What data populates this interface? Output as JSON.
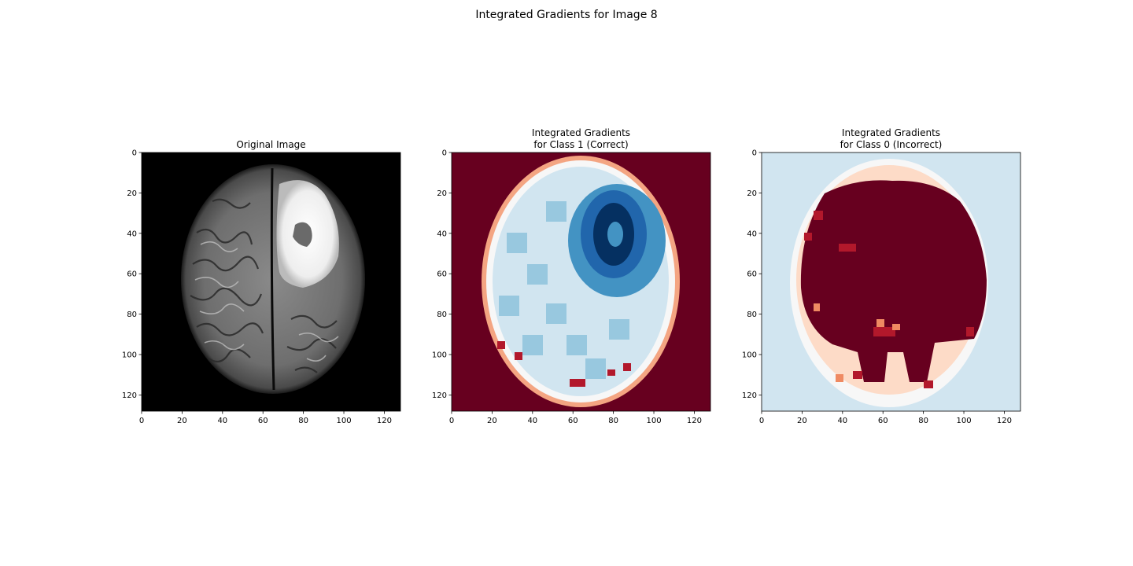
{
  "figure": {
    "title": "Integrated Gradients for Image 8"
  },
  "chart_data": [
    {
      "type": "heatmap",
      "title": "Original Image",
      "colormap": "gray",
      "content": "grayscale brain MRI slice",
      "xlim": [
        0,
        128
      ],
      "ylim": [
        128,
        0
      ],
      "xticks": [
        0,
        20,
        40,
        60,
        80,
        100,
        120
      ],
      "yticks": [
        0,
        20,
        40,
        60,
        80,
        100,
        120
      ],
      "grid": false
    },
    {
      "type": "heatmap",
      "title": "Integrated Gradients\n for Class 1 (Correct)",
      "colormap": "RdBu",
      "content": "attribution map, blue inside brain (strongest near tumor), dark red background",
      "xlim": [
        0,
        128
      ],
      "ylim": [
        128,
        0
      ],
      "xticks": [
        0,
        20,
        40,
        60,
        80,
        100,
        120
      ],
      "yticks": [
        0,
        20,
        40,
        60,
        80,
        100,
        120
      ],
      "grid": false
    },
    {
      "type": "heatmap",
      "title": "Integrated Gradients\n for Class 0 (Incorrect)",
      "colormap": "RdBu",
      "content": "attribution map, dark red inside brain, light blue background",
      "xlim": [
        0,
        128
      ],
      "ylim": [
        128,
        0
      ],
      "xticks": [
        0,
        20,
        40,
        60,
        80,
        100,
        120
      ],
      "yticks": [
        0,
        20,
        40,
        60,
        80,
        100,
        120
      ],
      "grid": false
    }
  ],
  "colors": {
    "dark_red": "#67001f",
    "red": "#b2182b",
    "salmon": "#ef8a62",
    "light_salmon": "#fddbc7",
    "white": "#f7f7f7",
    "light_blue": "#d1e5f0",
    "blue": "#92c5de",
    "mid_blue": "#4393c3",
    "dark_blue": "#2166ac",
    "navy": "#053061"
  }
}
